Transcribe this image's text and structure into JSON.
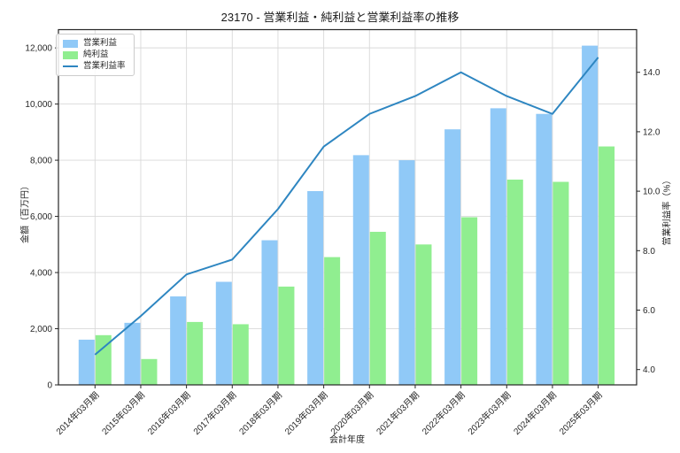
{
  "chart_data": {
    "type": "combo-bar-line",
    "title": "23170 - 営業利益・純利益と営業利益率の推移",
    "xlabel": "会計年度",
    "ylabel_left": "金額（百万円）",
    "ylabel_right": "営業利益率（%）",
    "grid": true,
    "legend_position": "upper-left",
    "categories": [
      "2014年03月期",
      "2015年03月期",
      "2016年03月期",
      "2017年03月期",
      "2018年03月期",
      "2019年03月期",
      "2020年03月期",
      "2021年03月期",
      "2022年03月期",
      "2023年03月期",
      "2024年03月期",
      "2025年03月期"
    ],
    "series": [
      {
        "name": "営業利益",
        "type": "bar",
        "axis": "left",
        "color": "#90c9f7",
        "values": [
          1610,
          2210,
          3150,
          3670,
          5150,
          6900,
          8180,
          8000,
          9100,
          9850,
          9650,
          12080
        ]
      },
      {
        "name": "純利益",
        "type": "bar",
        "axis": "left",
        "color": "#90ee90",
        "values": [
          1770,
          920,
          2240,
          2160,
          3500,
          4550,
          5450,
          5000,
          5970,
          7310,
          7230,
          8490
        ]
      },
      {
        "name": "営業利益率",
        "type": "line",
        "axis": "right",
        "color": "#2e86c1",
        "values": [
          4.5,
          5.8,
          7.2,
          7.7,
          9.4,
          11.5,
          12.6,
          13.2,
          14.0,
          13.2,
          12.6,
          14.5
        ]
      }
    ],
    "left_axis": {
      "range": [
        0,
        12650
      ],
      "ticks": [
        0,
        2000,
        4000,
        6000,
        8000,
        10000,
        12000
      ],
      "tick_labels": [
        "0",
        "2,000",
        "4,000",
        "6,000",
        "8,000",
        "10,000",
        "12,000"
      ]
    },
    "right_axis": {
      "range": [
        3.485,
        15.435
      ],
      "ticks": [
        4.0,
        6.0,
        8.0,
        10.0,
        12.0,
        14.0
      ],
      "tick_labels": [
        "4.0",
        "6.0",
        "8.0",
        "10.0",
        "12.0",
        "14.0"
      ]
    },
    "colors": {
      "grid": "#d9d9d9",
      "spine": "#262626",
      "text": "#262626",
      "background": "#ffffff"
    }
  }
}
